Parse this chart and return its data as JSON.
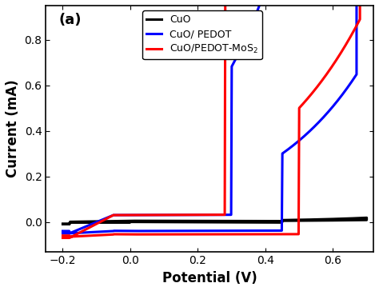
{
  "title": "(a)",
  "xlabel": "Potential (V)",
  "ylabel": "Current (mA)",
  "xlim": [
    -0.25,
    0.72
  ],
  "ylim": [
    -0.13,
    0.95
  ],
  "xticks": [
    -0.2,
    0.0,
    0.2,
    0.4,
    0.6
  ],
  "yticks": [
    0.0,
    0.2,
    0.4,
    0.6,
    0.8
  ],
  "legend_labels": [
    "CuO",
    "CuO/ PEDOT",
    "CuO/PEDOT-MoS$_2$"
  ],
  "colors": [
    "black",
    "blue",
    "red"
  ],
  "linewidth": 2.2,
  "figsize": [
    4.74,
    3.64
  ],
  "dpi": 100
}
